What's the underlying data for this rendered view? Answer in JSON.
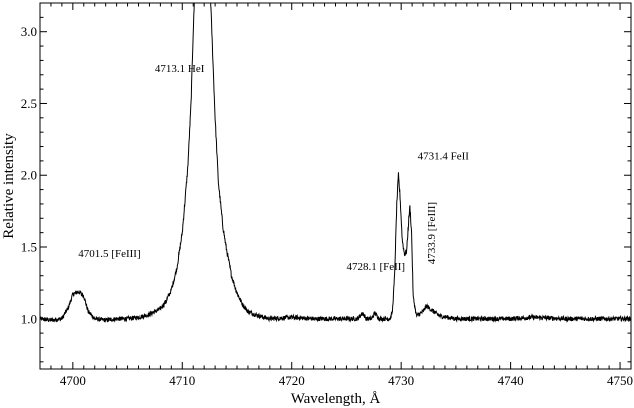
{
  "chart_data": {
    "type": "line",
    "title": "",
    "xlabel": "Wavelength, Å",
    "ylabel": "Relative intensity",
    "xlim": [
      4697,
      4751
    ],
    "ylim": [
      0.65,
      3.2
    ],
    "x_ticks": [
      4700,
      4710,
      4720,
      4730,
      4740,
      4750
    ],
    "y_ticks": [
      1.0,
      1.5,
      2.0,
      2.5,
      3.0
    ],
    "x_tick_labels": [
      "4700",
      "4710",
      "4720",
      "4730",
      "4740",
      "4750"
    ],
    "y_tick_labels": [
      "1.0",
      "1.5",
      "2.0",
      "2.5",
      "3.0"
    ],
    "grid": false,
    "series": [
      {
        "color": "#000000",
        "noise": 0.018,
        "points": [
          [
            4697.0,
            1.0
          ],
          [
            4698.0,
            0.99
          ],
          [
            4699.0,
            1.0
          ],
          [
            4699.6,
            1.08
          ],
          [
            4700.0,
            1.17
          ],
          [
            4700.5,
            1.19
          ],
          [
            4701.0,
            1.16
          ],
          [
            4701.4,
            1.05
          ],
          [
            4702.0,
            1.0
          ],
          [
            4703.0,
            0.99
          ],
          [
            4704.0,
            1.0
          ],
          [
            4705.0,
            1.0
          ],
          [
            4706.0,
            1.01
          ],
          [
            4707.0,
            1.03
          ],
          [
            4708.0,
            1.07
          ],
          [
            4708.5,
            1.12
          ],
          [
            4709.0,
            1.2
          ],
          [
            4709.5,
            1.35
          ],
          [
            4710.0,
            1.6
          ],
          [
            4710.5,
            2.05
          ],
          [
            4710.8,
            2.5
          ],
          [
            4711.0,
            3.0
          ],
          [
            4711.2,
            3.4
          ],
          [
            4712.5,
            3.4
          ],
          [
            4712.7,
            3.0
          ],
          [
            4713.0,
            2.4
          ],
          [
            4713.3,
            1.95
          ],
          [
            4713.7,
            1.65
          ],
          [
            4714.0,
            1.5
          ],
          [
            4714.5,
            1.3
          ],
          [
            4715.0,
            1.18
          ],
          [
            4715.5,
            1.1
          ],
          [
            4716.0,
            1.05
          ],
          [
            4717.0,
            1.02
          ],
          [
            4718.0,
            1.0
          ],
          [
            4720.0,
            1.01
          ],
          [
            4722.0,
            1.0
          ],
          [
            4724.0,
            1.0
          ],
          [
            4726.0,
            1.0
          ],
          [
            4726.5,
            1.04
          ],
          [
            4726.8,
            1.0
          ],
          [
            4727.3,
            1.0
          ],
          [
            4727.6,
            1.04
          ],
          [
            4728.0,
            1.0
          ],
          [
            4729.0,
            1.0
          ],
          [
            4729.2,
            1.05
          ],
          [
            4729.4,
            1.3
          ],
          [
            4729.6,
            1.8
          ],
          [
            4729.75,
            2.0
          ],
          [
            4729.9,
            1.85
          ],
          [
            4730.1,
            1.55
          ],
          [
            4730.3,
            1.45
          ],
          [
            4730.5,
            1.47
          ],
          [
            4730.7,
            1.7
          ],
          [
            4730.8,
            1.78
          ],
          [
            4730.95,
            1.6
          ],
          [
            4731.1,
            1.15
          ],
          [
            4731.4,
            1.02
          ],
          [
            4732.0,
            1.05
          ],
          [
            4732.3,
            1.09
          ],
          [
            4732.8,
            1.06
          ],
          [
            4733.5,
            1.02
          ],
          [
            4735.0,
            1.0
          ],
          [
            4738.0,
            1.0
          ],
          [
            4740.0,
            1.0
          ],
          [
            4742.0,
            1.01
          ],
          [
            4745.0,
            1.0
          ],
          [
            4748.0,
            1.0
          ],
          [
            4751.0,
            1.0
          ]
        ]
      }
    ],
    "annotations": [
      {
        "text": "4701.5 [FeIII]",
        "x": 4700.5,
        "y": 1.43,
        "rotate": false
      },
      {
        "text": "4713.1 HeI",
        "x": 4707.5,
        "y": 2.72,
        "rotate": false
      },
      {
        "text": "4731.4 FeII",
        "x": 4731.5,
        "y": 2.11,
        "rotate": false
      },
      {
        "text": "4728.1 [FeII]",
        "x": 4725.0,
        "y": 1.34,
        "rotate": false
      },
      {
        "text": "4733.9 [FeIII]",
        "x": 4733.1,
        "y": 1.38,
        "rotate": true
      }
    ]
  }
}
